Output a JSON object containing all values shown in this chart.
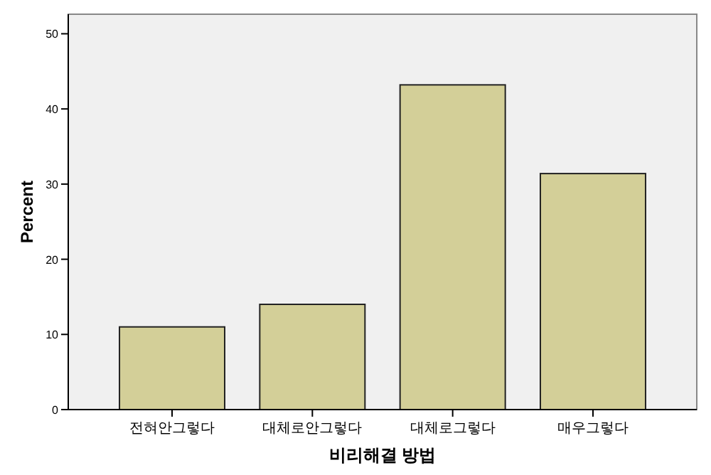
{
  "chart_data": {
    "type": "bar",
    "xlabel": "비리해결 방법",
    "ylabel": "Percent",
    "categories": [
      "전혀안그렇다",
      "대체로안그렇다",
      "대체로그렇다",
      "매우그렇다"
    ],
    "values": [
      11.0,
      14.0,
      43.2,
      31.4
    ],
    "color": "#d3cf98",
    "ylim": [
      0,
      52.6
    ],
    "yticks": [
      0,
      10,
      20,
      30,
      40,
      50
    ],
    "grid": false
  }
}
